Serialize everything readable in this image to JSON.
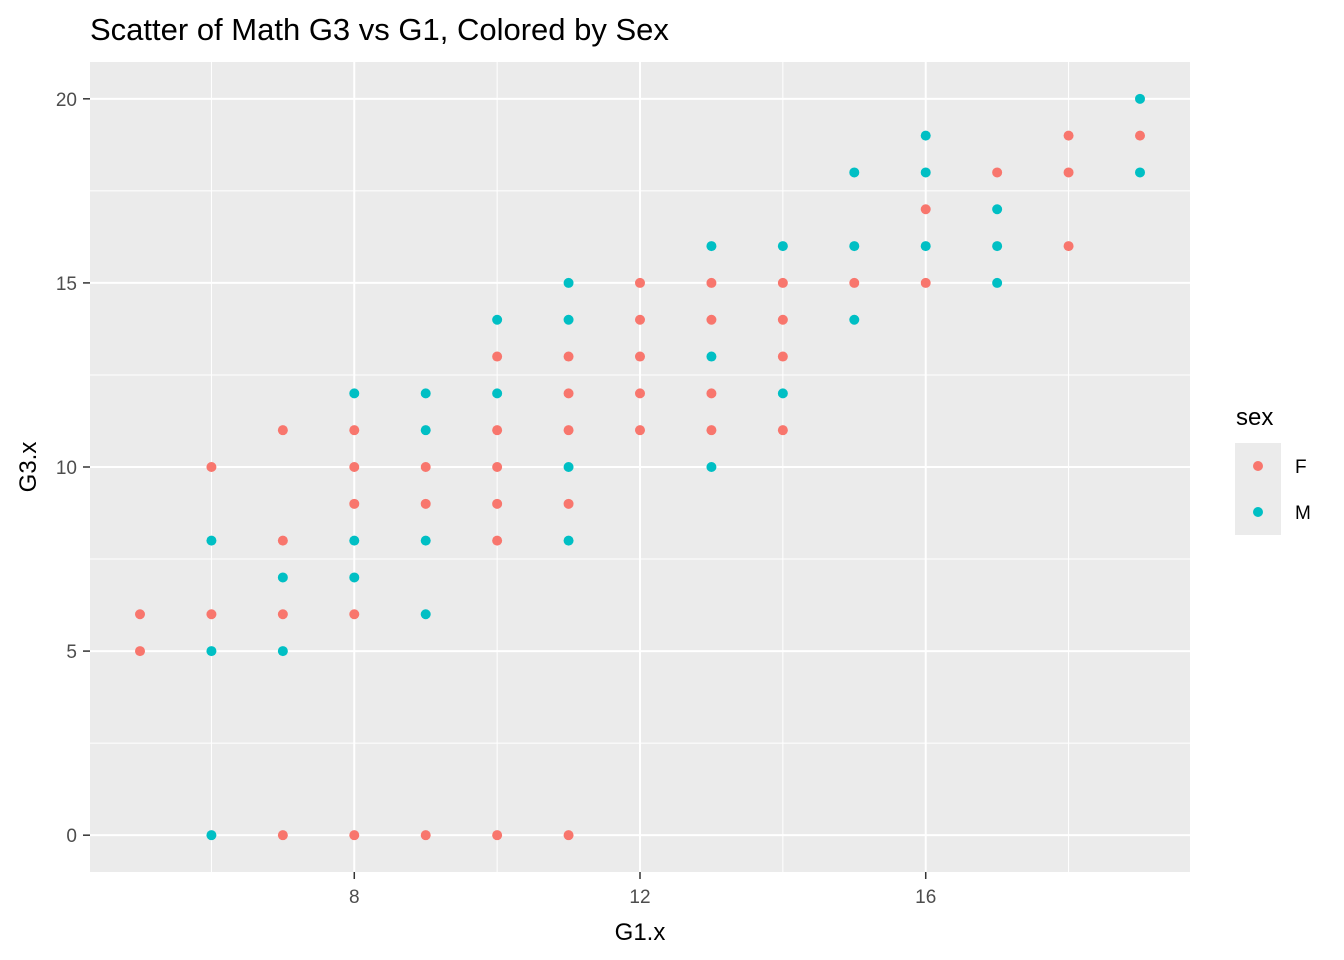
{
  "chart_data": {
    "type": "scatter",
    "title": "Scatter of Math G3 vs G1, Colored by Sex",
    "xlabel": "G1.x",
    "ylabel": "G3.x",
    "xlim": [
      4.3,
      19.7
    ],
    "ylim": [
      -1.0,
      21.0
    ],
    "x_ticks": [
      8,
      12,
      16
    ],
    "y_ticks": [
      0,
      5,
      10,
      15,
      20
    ],
    "grid": true,
    "legend": {
      "title": "sex",
      "position": "right"
    },
    "series": [
      {
        "name": "F",
        "color": "#F8766D",
        "points": [
          [
            5,
            5
          ],
          [
            5,
            6
          ],
          [
            6,
            6
          ],
          [
            6,
            10
          ],
          [
            7,
            0
          ],
          [
            7,
            6
          ],
          [
            7,
            8
          ],
          [
            7,
            11
          ],
          [
            8,
            0
          ],
          [
            8,
            6
          ],
          [
            8,
            9
          ],
          [
            8,
            10
          ],
          [
            8,
            11
          ],
          [
            9,
            0
          ],
          [
            9,
            9
          ],
          [
            9,
            10
          ],
          [
            10,
            0
          ],
          [
            10,
            8
          ],
          [
            10,
            9
          ],
          [
            10,
            10
          ],
          [
            10,
            11
          ],
          [
            10,
            13
          ],
          [
            11,
            0
          ],
          [
            11,
            9
          ],
          [
            11,
            11
          ],
          [
            11,
            12
          ],
          [
            11,
            13
          ],
          [
            12,
            11
          ],
          [
            12,
            12
          ],
          [
            12,
            13
          ],
          [
            12,
            14
          ],
          [
            12,
            15
          ],
          [
            13,
            11
          ],
          [
            13,
            12
          ],
          [
            13,
            14
          ],
          [
            13,
            15
          ],
          [
            14,
            11
          ],
          [
            14,
            13
          ],
          [
            14,
            14
          ],
          [
            14,
            15
          ],
          [
            15,
            15
          ],
          [
            16,
            15
          ],
          [
            16,
            17
          ],
          [
            17,
            18
          ],
          [
            18,
            16
          ],
          [
            18,
            18
          ],
          [
            18,
            19
          ],
          [
            19,
            19
          ]
        ]
      },
      {
        "name": "M",
        "color": "#00BFC4",
        "points": [
          [
            6,
            0
          ],
          [
            6,
            5
          ],
          [
            6,
            8
          ],
          [
            7,
            5
          ],
          [
            7,
            7
          ],
          [
            8,
            7
          ],
          [
            8,
            8
          ],
          [
            8,
            12
          ],
          [
            9,
            6
          ],
          [
            9,
            8
          ],
          [
            9,
            11
          ],
          [
            9,
            12
          ],
          [
            10,
            12
          ],
          [
            10,
            14
          ],
          [
            11,
            8
          ],
          [
            11,
            10
          ],
          [
            11,
            14
          ],
          [
            11,
            15
          ],
          [
            13,
            10
          ],
          [
            13,
            13
          ],
          [
            13,
            16
          ],
          [
            14,
            12
          ],
          [
            14,
            16
          ],
          [
            15,
            14
          ],
          [
            15,
            16
          ],
          [
            15,
            18
          ],
          [
            16,
            16
          ],
          [
            16,
            18
          ],
          [
            16,
            19
          ],
          [
            17,
            15
          ],
          [
            17,
            16
          ],
          [
            17,
            17
          ],
          [
            19,
            18
          ],
          [
            19,
            20
          ]
        ]
      }
    ]
  }
}
